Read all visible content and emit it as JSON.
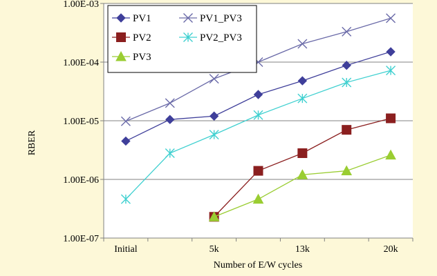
{
  "chart_data": {
    "type": "line",
    "title": "",
    "xlabel": "Number of E/W cycles",
    "ylabel": "RBER",
    "y_scale": "log",
    "ylim": [
      1e-07,
      0.001
    ],
    "y_tick_labels": [
      "1.00E-07",
      "1.00E-06",
      "1.00E-05",
      "1.00E-04",
      "1.00E-03"
    ],
    "x_positions": 7,
    "x_tick_labels": [
      {
        "index": 0,
        "label": "Initial"
      },
      {
        "index": 2,
        "label": "5k"
      },
      {
        "index": 4,
        "label": "13k"
      },
      {
        "index": 6,
        "label": "20k"
      }
    ],
    "grid": "horizontal",
    "legend_position": "top-left",
    "series": [
      {
        "name": "PV1",
        "color": "#3f3f9a",
        "marker": "diamond",
        "points": [
          [
            0,
            4.5e-06
          ],
          [
            1,
            1.05e-05
          ],
          [
            2,
            1.2e-05
          ],
          [
            3,
            2.8e-05
          ],
          [
            4,
            4.8e-05
          ],
          [
            5,
            8.8e-05
          ],
          [
            6,
            0.00015
          ]
        ]
      },
      {
        "name": "PV2",
        "color": "#8b1f1f",
        "marker": "square",
        "points": [
          [
            2,
            2.3e-07
          ],
          [
            3,
            1.4e-06
          ],
          [
            4,
            2.8e-06
          ],
          [
            5,
            7e-06
          ],
          [
            6,
            1.1e-05
          ]
        ]
      },
      {
        "name": "PV3",
        "color": "#9acd32",
        "marker": "triangle",
        "points": [
          [
            2,
            2.3e-07
          ],
          [
            3,
            4.6e-07
          ],
          [
            4,
            1.2e-06
          ],
          [
            5,
            1.4e-06
          ],
          [
            6,
            2.6e-06
          ]
        ]
      },
      {
        "name": "PV1_PV3",
        "color": "#6a6aa8",
        "marker": "x",
        "points": [
          [
            0,
            9.8e-06
          ],
          [
            1,
            2e-05
          ],
          [
            2,
            5.2e-05
          ],
          [
            3,
            0.0001
          ],
          [
            4,
            0.000205
          ],
          [
            5,
            0.00033
          ],
          [
            6,
            0.00056
          ]
        ]
      },
      {
        "name": "PV2_PV3",
        "color": "#3fd0d0",
        "marker": "star",
        "points": [
          [
            0,
            4.6e-07
          ],
          [
            1,
            2.8e-06
          ],
          [
            2,
            5.8e-06
          ],
          [
            3,
            1.25e-05
          ],
          [
            4,
            2.4e-05
          ],
          [
            5,
            4.5e-05
          ],
          [
            6,
            7.2e-05
          ]
        ]
      }
    ]
  }
}
